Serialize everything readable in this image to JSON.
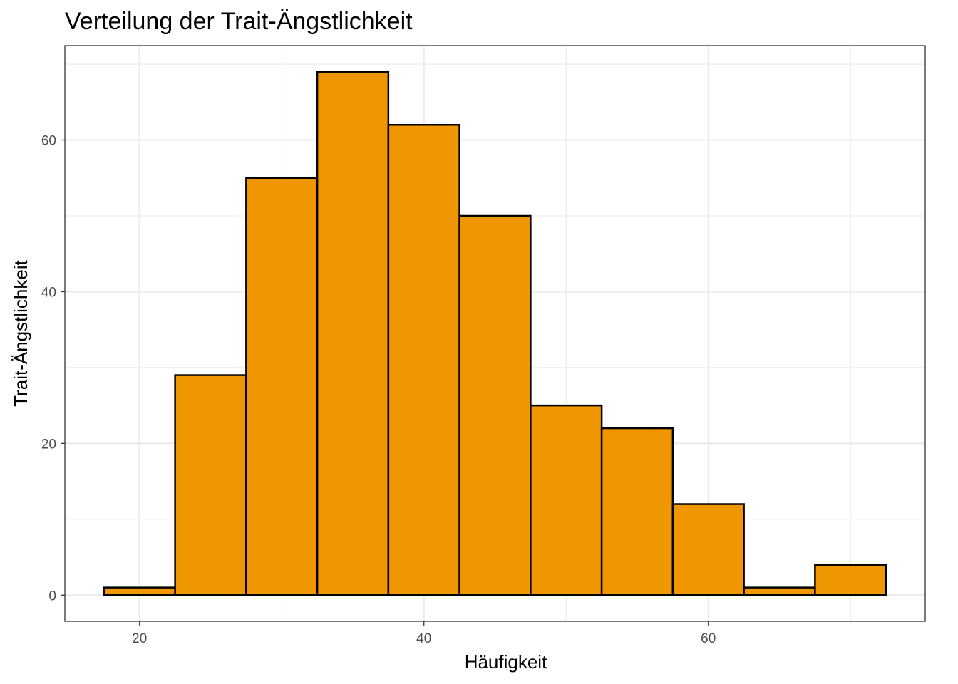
{
  "chart_data": {
    "type": "bar",
    "subtype": "histogram",
    "title": "Verteilung der Trait-Ängstlichkeit",
    "xlabel": "Häufigkeit",
    "ylabel": "Trait-Ängstlichkeit",
    "bin_width": 5,
    "bins": [
      {
        "x_start": 17.5,
        "x_end": 22.5,
        "count": 1
      },
      {
        "x_start": 22.5,
        "x_end": 27.5,
        "count": 29
      },
      {
        "x_start": 27.5,
        "x_end": 32.5,
        "count": 55
      },
      {
        "x_start": 32.5,
        "x_end": 37.5,
        "count": 69
      },
      {
        "x_start": 37.5,
        "x_end": 42.5,
        "count": 62
      },
      {
        "x_start": 42.5,
        "x_end": 47.5,
        "count": 50
      },
      {
        "x_start": 47.5,
        "x_end": 52.5,
        "count": 25
      },
      {
        "x_start": 52.5,
        "x_end": 57.5,
        "count": 22
      },
      {
        "x_start": 57.5,
        "x_end": 62.5,
        "count": 12
      },
      {
        "x_start": 62.5,
        "x_end": 67.5,
        "count": 1
      },
      {
        "x_start": 67.5,
        "x_end": 72.5,
        "count": 4
      }
    ],
    "x_ticks": [
      "20",
      "40",
      "60"
    ],
    "y_ticks": [
      "0",
      "20",
      "40",
      "60"
    ],
    "xlim": [
      14.75,
      75.25
    ],
    "ylim": [
      -3.45,
      72.45
    ],
    "grid": true,
    "bar_fill": "#F09600",
    "bar_stroke": "#000000",
    "panel_border": "#333333",
    "grid_color": "#EBEBEB"
  }
}
